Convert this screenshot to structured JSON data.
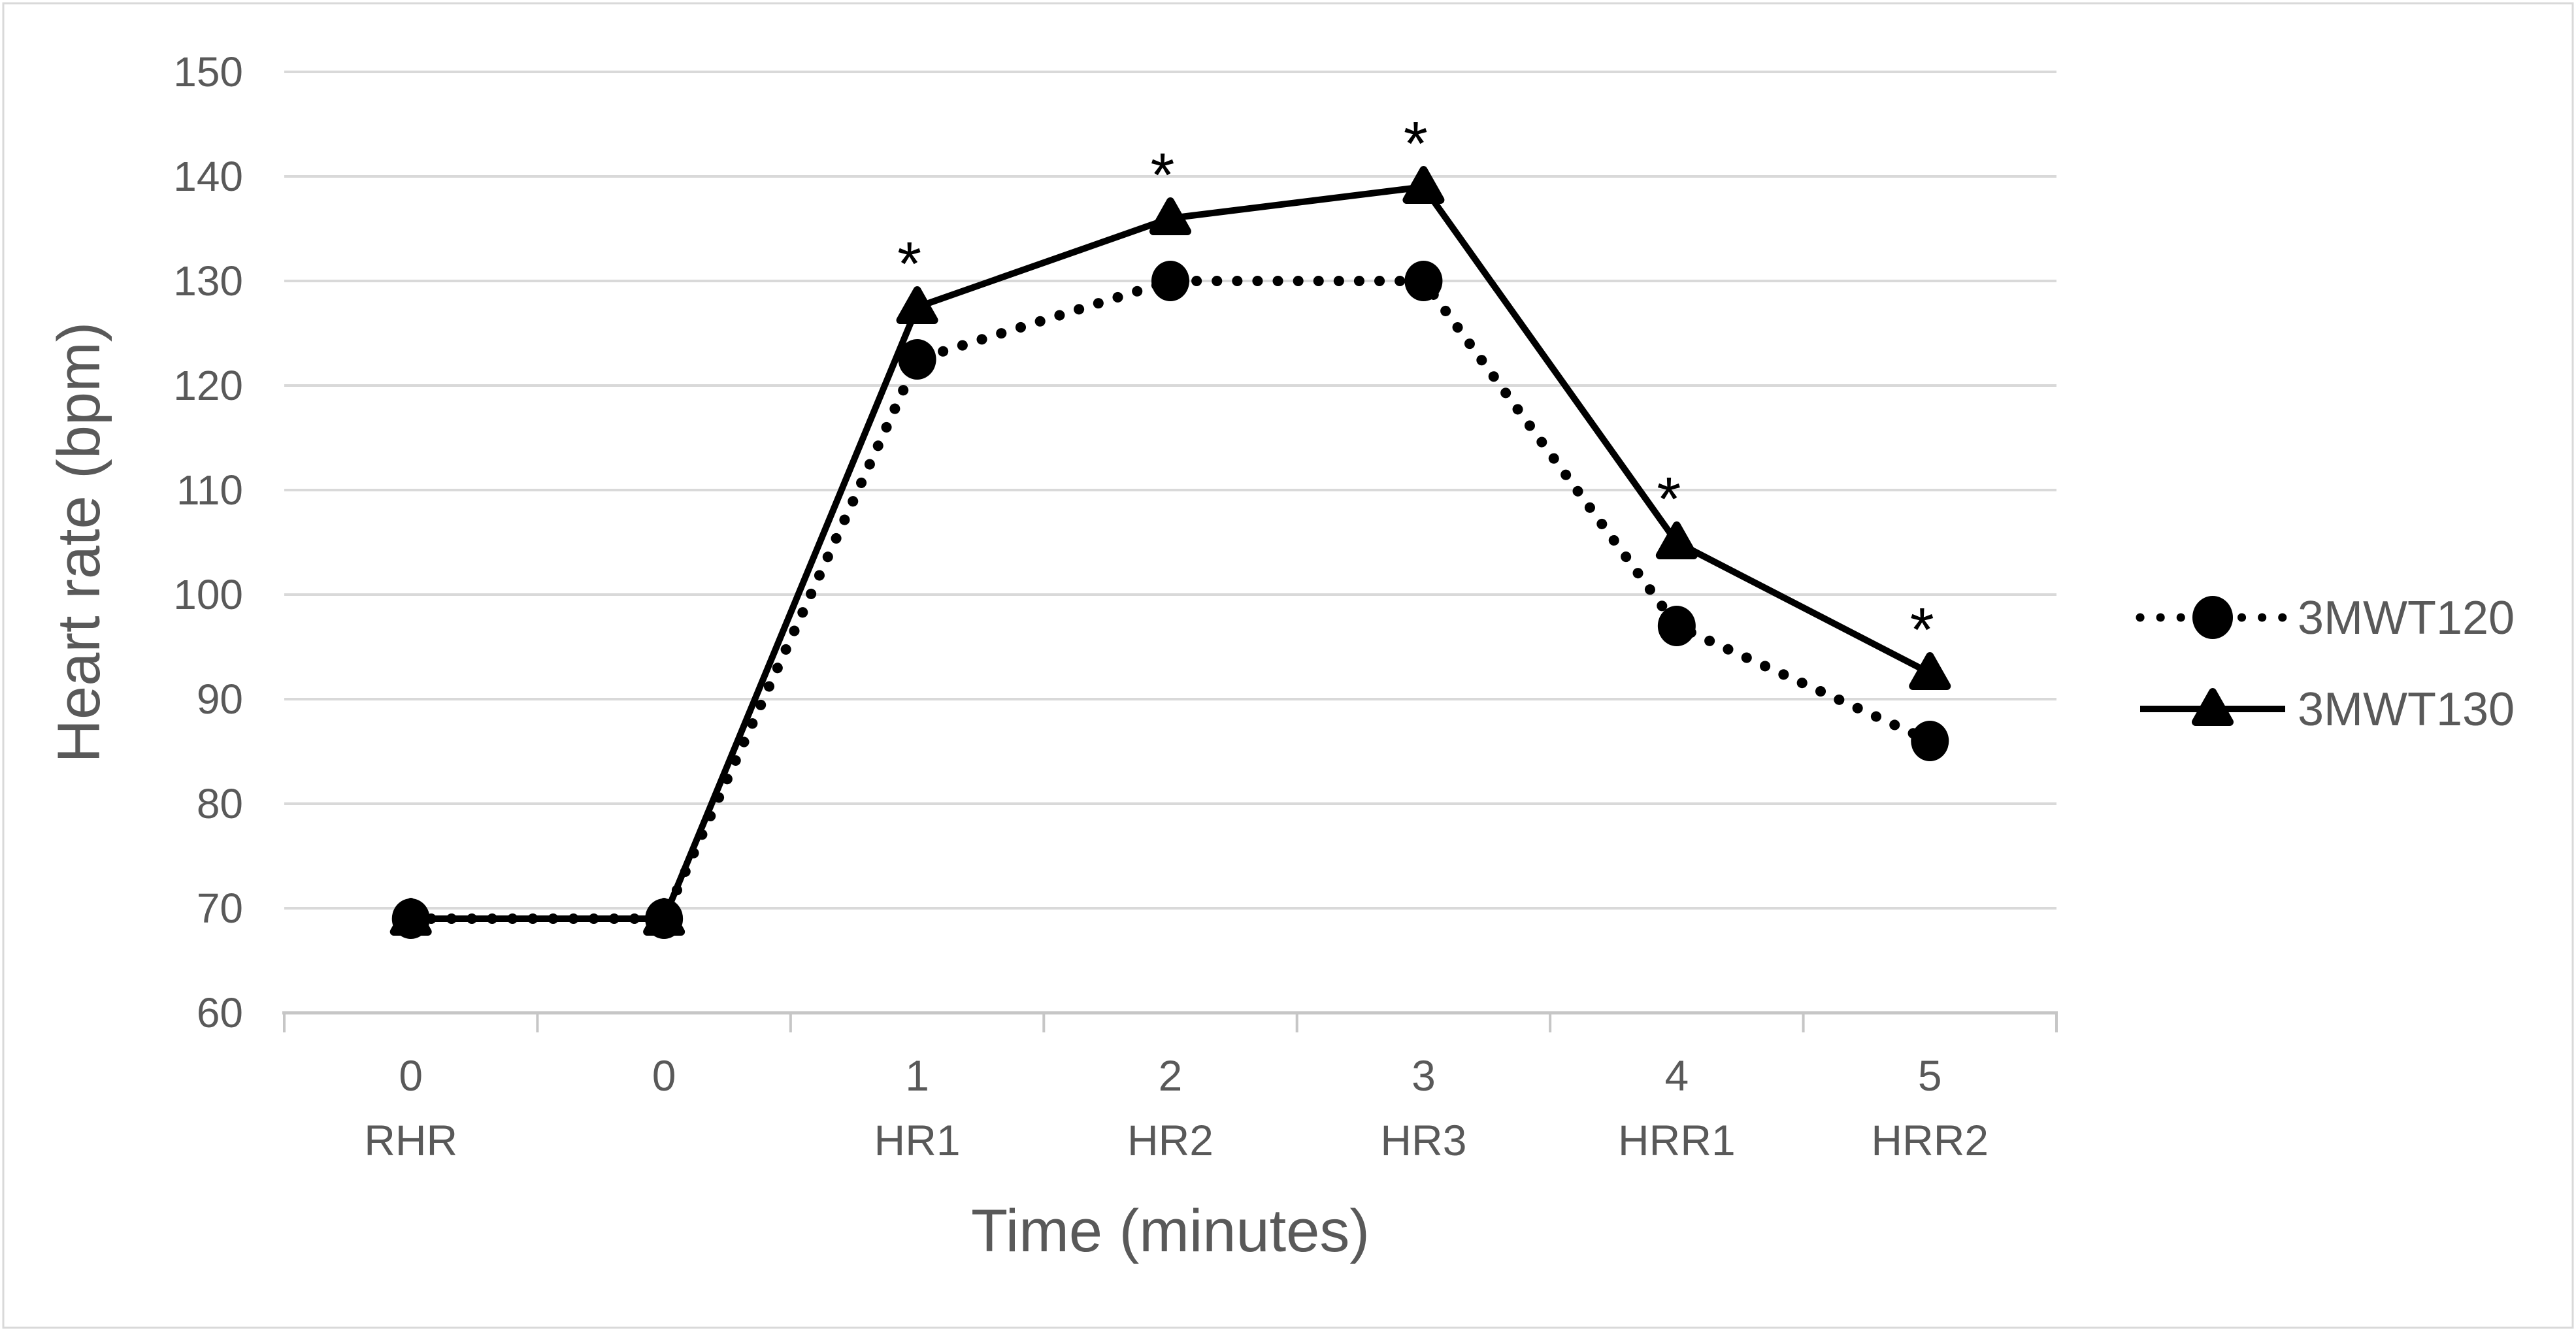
{
  "chart_data": {
    "type": "line",
    "title": "",
    "xlabel": "Time (minutes)",
    "ylabel": "Heart rate (bpm)",
    "ylim": [
      60,
      150
    ],
    "ytick_step": 10,
    "yticks": [
      "150",
      "140",
      "130",
      "120",
      "110",
      "100",
      "90",
      "80",
      "70",
      "60"
    ],
    "grid": "horizontal",
    "legend_position": "right",
    "categories_line1": [
      "0",
      "0",
      "1",
      "2",
      "3",
      "4",
      "5"
    ],
    "categories_line2": [
      "RHR",
      "",
      "HR1",
      "HR2",
      "HR3",
      "HRR1",
      "HRR2"
    ],
    "series": [
      {
        "name": "3MWT120",
        "marker": "circle",
        "line_style": "dotted",
        "color": "#000000",
        "values": [
          69,
          69,
          122.5,
          130,
          130,
          97,
          86
        ]
      },
      {
        "name": "3MWT130",
        "marker": "triangle",
        "line_style": "solid",
        "color": "#000000",
        "values": [
          69,
          69,
          127.5,
          136,
          139,
          105,
          92.5
        ],
        "significant_indices": [
          2,
          3,
          4,
          5,
          6
        ]
      }
    ],
    "significance": {
      "symbol": "*",
      "applies_to": "3MWT130",
      "at_categories": [
        "HR1",
        "HR2",
        "HR3",
        "HRR1",
        "HRR2"
      ]
    }
  },
  "colors": {
    "text": "#595959",
    "gridline": "#d9d9d9",
    "axis": "#c6c6c6",
    "series": "#000000",
    "border": "#d9d9d9",
    "background": "#ffffff"
  }
}
